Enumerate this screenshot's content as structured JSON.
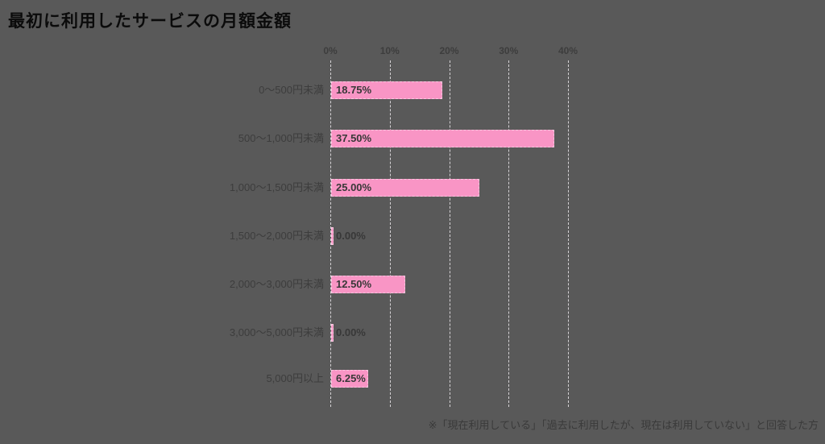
{
  "page": {
    "background_color": "#595959"
  },
  "title": {
    "text": "最初に利用したサービスの月額金額",
    "color": "#0b0b0b"
  },
  "footnote": {
    "text": "※「現在利用している」「過去に利用したが、現在は利用していない」と回答した方"
  },
  "chart_data": {
    "type": "bar",
    "orientation": "horizontal",
    "title": "最初に利用したサービスの月額金額",
    "categories": [
      "0〜500円未満",
      "500〜1,000円未満",
      "1,000〜1,500円未満",
      "1,500〜2,000円未満",
      "2,000〜3,000円未満",
      "3,000〜5,000円未満",
      "5,000円以上"
    ],
    "values": [
      18.75,
      37.5,
      25.0,
      0.0,
      12.5,
      0.0,
      6.25
    ],
    "value_labels": [
      "18.75%",
      "37.50%",
      "25.00%",
      "0.00%",
      "12.50%",
      "0.00%",
      "6.25%"
    ],
    "x_ticks": [
      "0%",
      "10%",
      "20%",
      "30%",
      "40%"
    ],
    "x_tick_values": [
      0,
      10,
      20,
      30,
      40
    ],
    "xlim": [
      0,
      40
    ],
    "xlabel": "",
    "ylabel": "",
    "grid": true,
    "legend": false,
    "bar_color": "#F995C5",
    "grid_color": "#D6D3D6",
    "category_label_color": "#3D3D3D",
    "tick_label_color": "#3D3D3D",
    "value_label_color": "#383838"
  }
}
